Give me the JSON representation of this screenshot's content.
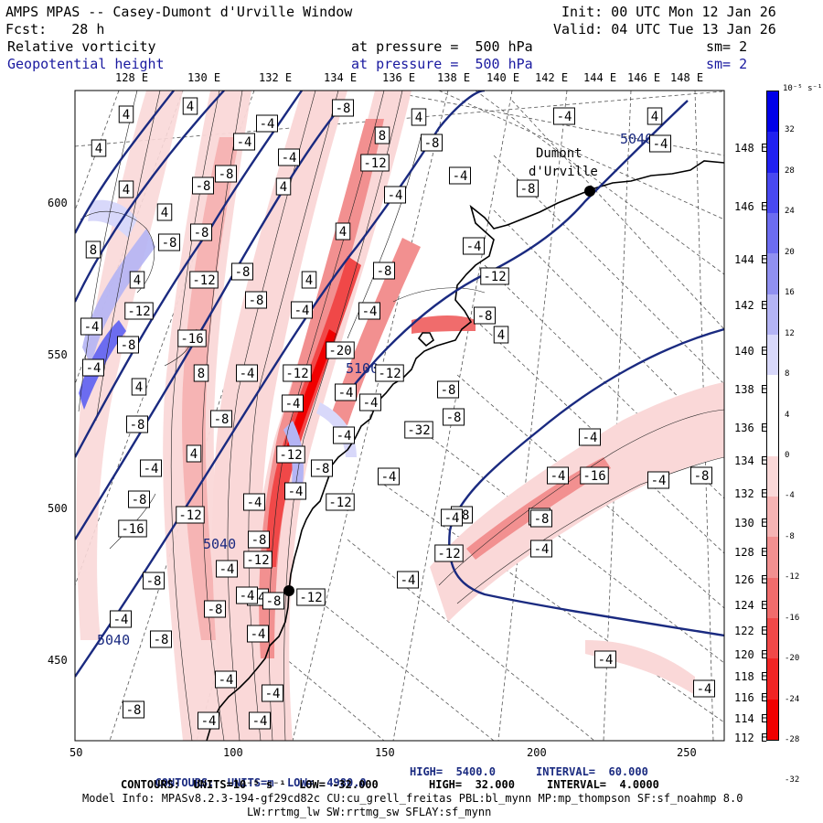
{
  "header": {
    "title": "AMPS MPAS -- Casey-Dumont d'Urville Window",
    "forecast": "Fcst:   28 h",
    "init": "Init: 00 UTC Mon 12 Jan 26",
    "valid": "Valid: 04 UTC Tue 13 Jan 26",
    "field1": "Relative vorticity",
    "field1_level": "at pressure =  500 hPa",
    "field1_sm": "sm= 2",
    "field2": "Geopotential height",
    "field2_level": "at pressure =  500 hPa",
    "field2_sm": "sm= 2"
  },
  "top_longitudes": [
    "128 E",
    "130 E",
    "132 E",
    "134 E",
    "136 E",
    "138 E",
    "140 E",
    "142 E",
    "144 E",
    "146 E",
    "148 E"
  ],
  "right_longitudes": [
    "148 E",
    "146 E",
    "144 E",
    "142 E",
    "140 E",
    "138 E",
    "136 E",
    "134 E",
    "132 E",
    "130 E",
    "128 E",
    "126 E",
    "124 E",
    "122 E",
    "120 E",
    "118 E",
    "116 E",
    "114 E",
    "112 E"
  ],
  "x_axis": [
    "50",
    "100",
    "150",
    "200",
    "250"
  ],
  "y_axis": [
    "600",
    "550",
    "500",
    "450"
  ],
  "colorbar": {
    "unit": "10⁻⁵ s⁻¹",
    "labels": [
      "32",
      "28",
      "24",
      "20",
      "16",
      "12",
      "8",
      "4",
      "0",
      "-4",
      "-8",
      "-12",
      "-16",
      "-20",
      "-24",
      "-28",
      "-32"
    ],
    "colors": [
      "#0000e8",
      "#2020f0",
      "#4848f0",
      "#6c6cf0",
      "#9090f0",
      "#b4b4f4",
      "#d8d8fa",
      "#ffffff",
      "#ffffff",
      "#fad8d8",
      "#f6b4b4",
      "#f29090",
      "#f06c6c",
      "#f04848",
      "#f02424",
      "#f00000"
    ]
  },
  "station_label": [
    "Dumont",
    "d'Urville"
  ],
  "height_labels": [
    "5040",
    "5040",
    "5040",
    "5100"
  ],
  "vort_labels": [
    "4",
    "4",
    "4",
    "4",
    "-4",
    "-4",
    "4",
    "4",
    "8",
    "-8",
    "-8",
    "4",
    "-12",
    "-12",
    "-8",
    "-8",
    "-4",
    "-8",
    "-4",
    "4",
    "-4",
    "-8",
    "4",
    "8",
    "-8",
    "-12",
    "-4",
    "-4",
    "-8",
    "4",
    "-4",
    "4",
    "-12",
    "-8",
    "-8",
    "-8",
    "-4",
    "-4",
    "-8",
    "-16",
    "-4",
    "4",
    "-4",
    "8",
    "-12",
    "-12",
    "-20",
    "-4",
    "-4",
    "-8",
    "4",
    "-4",
    "-8",
    "-8",
    "-4",
    "-32",
    "-8",
    "-4",
    "4",
    "-4",
    "-8",
    "-4",
    "-12",
    "-4",
    "-4",
    "-16",
    "-4",
    "-8",
    "-8",
    "-12",
    "-4",
    "-4",
    "-12",
    "-8",
    "-16",
    "-8",
    "-4",
    "-12",
    "-4",
    "-12",
    "-4",
    "-8",
    "-4",
    "-4",
    "-12",
    "-8",
    "-4",
    "-8",
    "-4",
    "-4",
    "-4",
    "-4",
    "-4",
    "-8",
    "-4",
    "-4",
    "-8",
    "-4",
    "-8",
    "-4"
  ],
  "footer": {
    "line1_prefix": "CONTOURS:  UNITS=m  LOW=  4980.0",
    "line1_high": "HIGH=  5400.0",
    "line1_interval": "INTERVAL=  60.000",
    "line2_prefix": "CONTOURS:  UNITS=10⁻⁵ s⁻¹  LOW= -32.000",
    "line2_high": "HIGH=  32.000",
    "line2_interval": "INTERVAL=  4.0000",
    "model_info": "Model Info: MPASv8.2.3-194-gf29cd82c CU:cu_grell_freitas PBL:bl_mynn MP:mp_thompson SF:sf_noahmp 8.0",
    "model_info2": "LW:rrtmg_lw SW:rrtmg_sw SFLAY:sf_mynn"
  }
}
